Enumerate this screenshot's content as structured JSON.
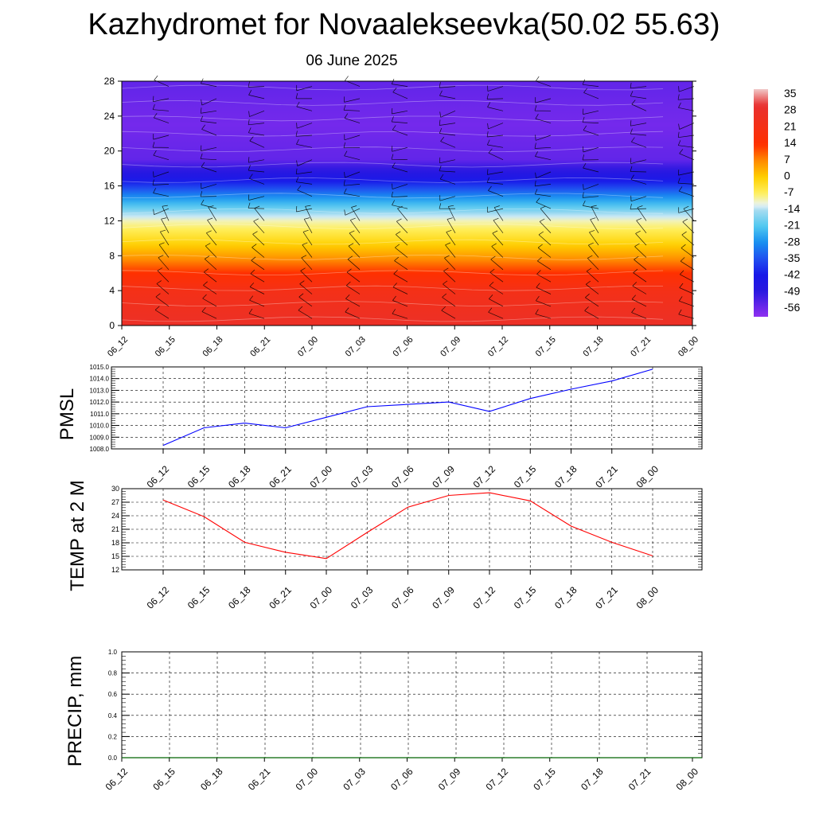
{
  "header": {
    "title": "Kazhydromet for Novaalekseevka(50.02 55.63)",
    "date": "06 June 2025"
  },
  "chart_data": [
    {
      "type": "heatmap",
      "description_of_field": "time-height cross section of temperature with wind barbs",
      "y_ticks": [
        0,
        4,
        8,
        12,
        16,
        20,
        24,
        28
      ],
      "ylim": [
        0,
        28
      ],
      "x_ticks": [
        "06_12",
        "06_15",
        "06_18",
        "06_21",
        "07_00",
        "07_03",
        "07_06",
        "07_09",
        "07_12",
        "07_15",
        "07_18",
        "07_21",
        "08_00"
      ],
      "colorbar": {
        "labels": [
          "35",
          "28",
          "21",
          "14",
          "7",
          "0",
          "-7",
          "-14",
          "-21",
          "-28",
          "-35",
          "-42",
          "-49",
          "-56"
        ],
        "stops": [
          {
            "v": 38,
            "color": "#f0c8c8"
          },
          {
            "v": 31,
            "color": "#e83030"
          },
          {
            "v": 14,
            "color": "#ff3000"
          },
          {
            "v": 7,
            "color": "#ff8c00"
          },
          {
            "v": 0,
            "color": "#ffd000"
          },
          {
            "v": -7,
            "color": "#fff060"
          },
          {
            "v": -12,
            "color": "#e8f4f8"
          },
          {
            "v": -14,
            "color": "#a8dcf0"
          },
          {
            "v": -21,
            "color": "#50c8f0"
          },
          {
            "v": -28,
            "color": "#1890f0"
          },
          {
            "v": -35,
            "color": "#2050f0"
          },
          {
            "v": -42,
            "color": "#1818e8"
          },
          {
            "v": -49,
            "color": "#2a18e0"
          },
          {
            "v": -60,
            "color": "#9030f0"
          }
        ]
      },
      "profile": [
        {
          "h": 0,
          "t": 28
        },
        {
          "h": 4,
          "t": 22
        },
        {
          "h": 6,
          "t": 14
        },
        {
          "h": 8,
          "t": 5
        },
        {
          "h": 10,
          "t": -3
        },
        {
          "h": 12,
          "t": -10
        },
        {
          "h": 13,
          "t": -16
        },
        {
          "h": 15,
          "t": -30
        },
        {
          "h": 17,
          "t": -45
        },
        {
          "h": 19,
          "t": -55
        },
        {
          "h": 23,
          "t": -57
        },
        {
          "h": 28,
          "t": -55
        }
      ]
    },
    {
      "type": "line",
      "ylabel": "PMSL",
      "ylim": [
        1008,
        1015
      ],
      "y_ticks": [
        "1008.0",
        "1009.0",
        "1010.0",
        "1011.0",
        "1012.0",
        "1013.0",
        "1014.0",
        "1015.0"
      ],
      "categories": [
        "06_12",
        "06_15",
        "06_18",
        "06_21",
        "07_00",
        "07_03",
        "07_06",
        "07_09",
        "07_12",
        "07_15",
        "07_18",
        "07_21",
        "08_00"
      ],
      "values": [
        1008.3,
        1009.8,
        1010.2,
        1009.8,
        1010.7,
        1011.6,
        1011.8,
        1012.0,
        1011.2,
        1012.3,
        1013.1,
        1013.8,
        1014.8
      ],
      "color": "#0000ff"
    },
    {
      "type": "line",
      "ylabel": "TEMP at 2 M",
      "ylim": [
        12,
        30
      ],
      "y_ticks": [
        "12",
        "15",
        "18",
        "21",
        "24",
        "27",
        "30"
      ],
      "categories": [
        "06_12",
        "06_15",
        "06_18",
        "06_21",
        "07_00",
        "07_03",
        "07_06",
        "07_09",
        "07_12",
        "07_15",
        "07_18",
        "07_21",
        "08_00"
      ],
      "values": [
        27.5,
        23.8,
        18.1,
        15.9,
        14.5,
        20.3,
        25.9,
        28.5,
        29.1,
        27.3,
        21.7,
        18.1,
        15.1
      ],
      "color": "#ff0000"
    },
    {
      "type": "line",
      "ylabel": "PRECIP, mm",
      "ylim": [
        0,
        1
      ],
      "y_ticks": [
        "0.0",
        "0.2",
        "0.4",
        "0.6",
        "0.8",
        "1.0"
      ],
      "categories": [
        "06_12",
        "06_15",
        "06_18",
        "06_21",
        "07_00",
        "07_03",
        "07_06",
        "07_09",
        "07_12",
        "07_15",
        "07_18",
        "07_21",
        "08_00"
      ],
      "values": [
        0,
        0,
        0,
        0,
        0,
        0,
        0,
        0,
        0,
        0,
        0,
        0,
        0
      ],
      "color": "#006400"
    }
  ]
}
